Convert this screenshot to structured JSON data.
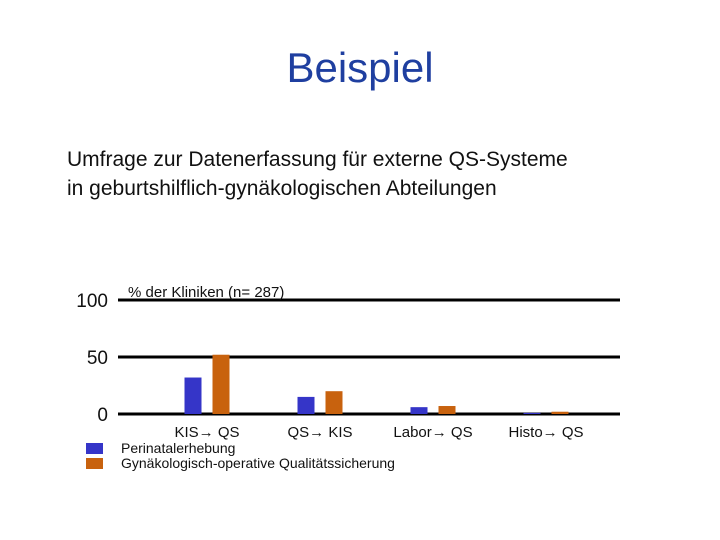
{
  "page": {
    "title": "Beispiel",
    "subtitle_lines": [
      "Umfrage zur Datenerfassung für externe QS-Systeme",
      "in geburtshilflich-gynäkologischen Abteilungen"
    ]
  },
  "chart_data": {
    "type": "bar",
    "title": "% der Kliniken  (n= 287)",
    "categories": [
      "KIS→ QS",
      "QS→ KIS",
      "Labor→ QS",
      "Histo→ QS"
    ],
    "series": [
      {
        "name": "Perinatalerhebung",
        "color": "#3535c8",
        "values": [
          32,
          15,
          6,
          1
        ]
      },
      {
        "name": "Gynäkologisch-operative Qualitätssicherung",
        "color": "#c8620e",
        "values": [
          52,
          20,
          7,
          2
        ]
      }
    ],
    "yticks": [
      0,
      50,
      100
    ],
    "ylim": [
      0,
      100
    ],
    "grid": true,
    "legend_position": "bottom-left"
  }
}
